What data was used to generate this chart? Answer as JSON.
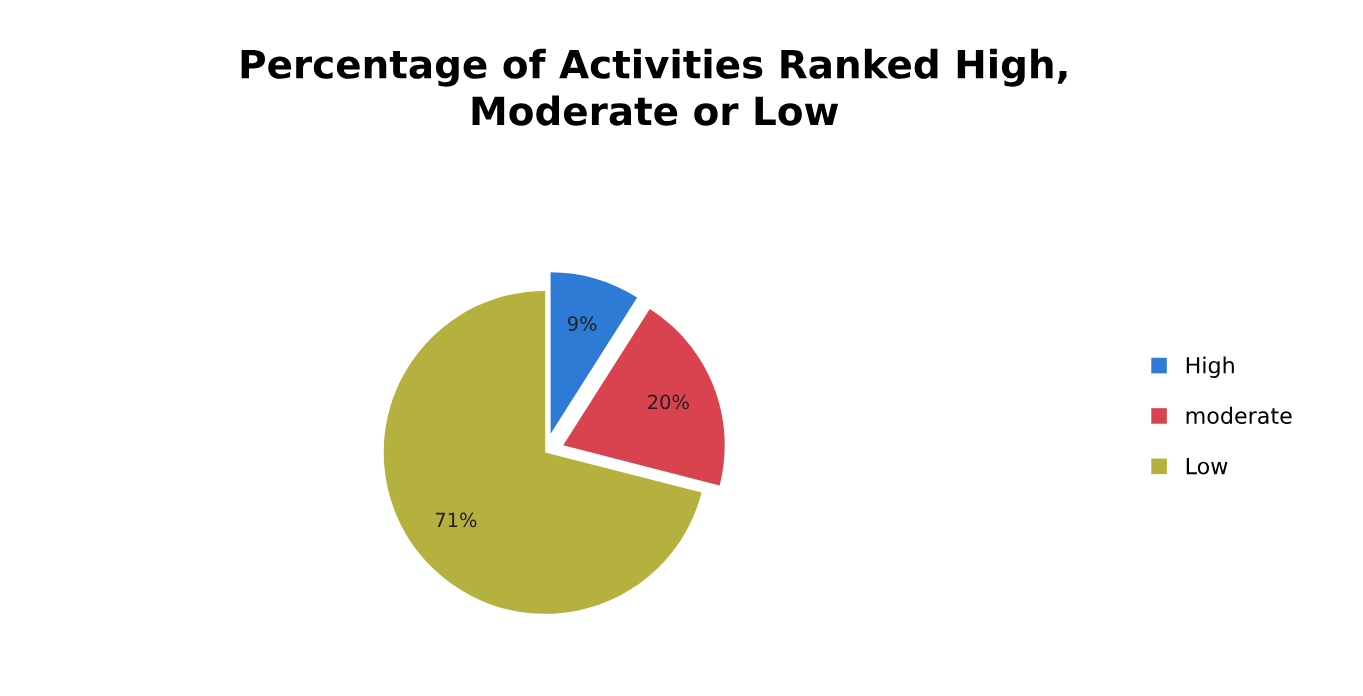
{
  "chart_data": {
    "type": "pie",
    "title": "Percentage of Activities Ranked High,\nModerate or Low",
    "categories": [
      "High",
      "moderate",
      "Low"
    ],
    "values": [
      9,
      20,
      71
    ],
    "colors": [
      "#2e7bd6",
      "#d9424f",
      "#b5b13f"
    ],
    "value_labels": [
      "9%",
      "20%",
      "71%"
    ],
    "legend": "right"
  }
}
